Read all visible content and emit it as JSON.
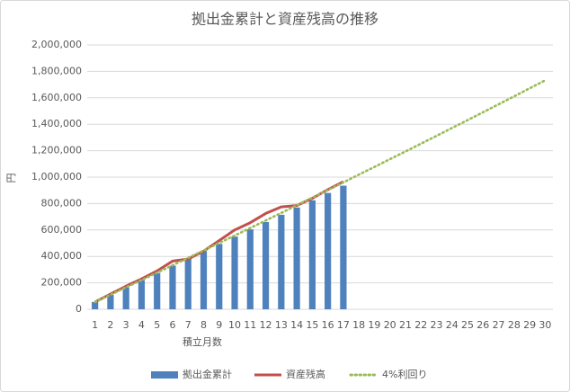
{
  "chart_data": {
    "type": "bar-line",
    "title": "拠出金累計と資産残高の推移",
    "x_label": "積立月数",
    "y_label": "円",
    "categories": [
      "1",
      "2",
      "3",
      "4",
      "5",
      "6",
      "7",
      "8",
      "9",
      "10",
      "11",
      "12",
      "13",
      "14",
      "15",
      "16",
      "17",
      "18",
      "19",
      "20",
      "21",
      "22",
      "23",
      "24",
      "25",
      "26",
      "27",
      "28",
      "29",
      "30"
    ],
    "series": [
      {
        "name": "拠出金累計",
        "kind": "bar",
        "color": "#4f81bd",
        "values": [
          55000,
          110000,
          165000,
          220000,
          275000,
          330000,
          385000,
          440000,
          495000,
          550000,
          605000,
          660000,
          715000,
          770000,
          825000,
          880000,
          935000,
          null,
          null,
          null,
          null,
          null,
          null,
          null,
          null,
          null,
          null,
          null,
          null,
          null
        ]
      },
      {
        "name": "資産残高",
        "kind": "line",
        "color": "#c0504d",
        "values": [
          55000,
          115000,
          175000,
          230000,
          290000,
          365000,
          380000,
          440000,
          520000,
          600000,
          655000,
          725000,
          775000,
          785000,
          840000,
          905000,
          965000,
          null,
          null,
          null,
          null,
          null,
          null,
          null,
          null,
          null,
          null,
          null,
          null,
          null
        ]
      },
      {
        "name": "4%利回り",
        "kind": "dotted",
        "color": "#9bbb59",
        "values": [
          55000,
          110000,
          166000,
          221000,
          277000,
          333000,
          389000,
          445000,
          502000,
          558000,
          615000,
          672000,
          729000,
          787000,
          845000,
          902000,
          960000,
          1019000,
          1077000,
          1136000,
          1194000,
          1253000,
          1312000,
          1372000,
          1431000,
          1491000,
          1551000,
          1611000,
          1672000,
          1732000
        ]
      }
    ],
    "ylim": [
      0,
      2000000
    ],
    "yticks": [
      0,
      {
        "value": 200000,
        "label": "200,000"
      },
      {
        "value": 400000,
        "label": "400,000"
      },
      {
        "value": 600000,
        "label": "600,000"
      },
      {
        "value": 800000,
        "label": "800,000"
      },
      {
        "value": 1000000,
        "label": "1,000,000"
      },
      {
        "value": 1200000,
        "label": "1,200,000"
      },
      {
        "value": 1400000,
        "label": "1,400,000"
      },
      {
        "value": 1600000,
        "label": "1,600,000"
      },
      {
        "value": 1800000,
        "label": "1,800,000"
      },
      {
        "value": 2000000,
        "label": "2,000,000"
      }
    ],
    "grid": true,
    "legend": "bottom"
  }
}
